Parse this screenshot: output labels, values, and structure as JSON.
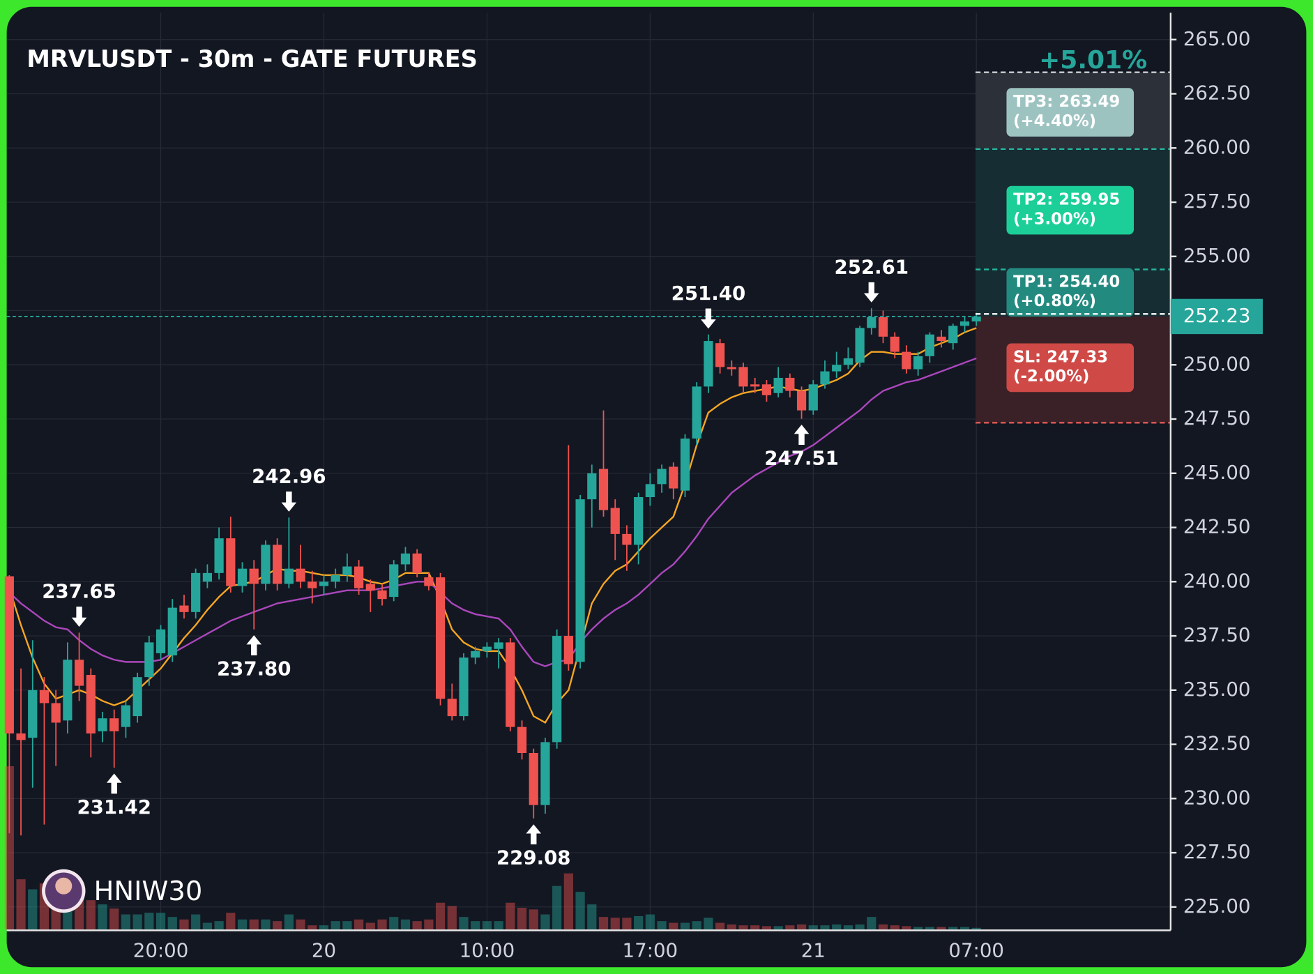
{
  "chart_data": {
    "type": "candlestick",
    "title": "MRVLUSDT - 30m - GATE FUTURES",
    "watermark": "HNIW30",
    "categories": [
      null,
      null,
      null,
      null,
      null,
      null,
      null,
      null,
      null,
      null,
      null,
      null,
      null,
      "20:00",
      null,
      null,
      null,
      null,
      null,
      null,
      null,
      null,
      null,
      null,
      null,
      null,
      null,
      "20",
      null,
      null,
      null,
      null,
      null,
      null,
      null,
      null,
      null,
      null,
      null,
      null,
      null,
      "10:00",
      null,
      null,
      null,
      null,
      null,
      null,
      null,
      null,
      null,
      null,
      null,
      null,
      null,
      "17:00",
      null,
      null,
      null,
      null,
      null,
      null,
      null,
      null,
      null,
      null,
      null,
      null,
      null,
      "21",
      null,
      null,
      null,
      null,
      null,
      null,
      null,
      null,
      null,
      null,
      null,
      null,
      null,
      "07:00"
    ],
    "open": [
      240.25,
      233.0,
      232.8,
      235.0,
      234.4,
      233.6,
      236.4,
      235.7,
      233.1,
      233.7,
      233.3,
      233.8,
      235.6,
      236.7,
      236.6,
      238.9,
      238.6,
      240.0,
      240.4,
      242.0,
      239.8,
      240.6,
      239.9,
      241.7,
      239.9,
      240.6,
      240.0,
      239.8,
      240.0,
      240.3,
      240.7,
      239.9,
      239.6,
      239.3,
      240.8,
      241.3,
      240.2,
      240.2,
      234.6,
      233.8,
      236.5,
      236.8,
      236.9,
      237.2,
      233.3,
      232.1,
      229.7,
      232.6,
      237.5,
      236.3,
      243.8,
      245.2,
      243.4,
      242.2,
      241.7,
      243.9,
      244.5,
      245.3,
      244.2,
      246.6,
      249.0,
      251.0,
      249.9,
      249.9,
      249.1,
      249.1,
      248.7,
      249.4,
      248.8,
      247.9,
      249.1,
      249.7,
      250.0,
      250.1,
      251.7,
      252.2,
      251.3,
      250.6,
      249.8,
      250.4,
      251.3,
      251.0,
      251.8,
      252.0
    ],
    "high": [
      240.3,
      236.0,
      237.3,
      235.6,
      235.0,
      237.2,
      237.65,
      236.0,
      234.0,
      234.1,
      234.5,
      235.8,
      237.5,
      238.0,
      239.2,
      239.4,
      240.6,
      240.8,
      242.5,
      243.0,
      240.9,
      241.0,
      241.9,
      242.0,
      242.96,
      241.7,
      240.5,
      240.3,
      240.6,
      241.3,
      241.0,
      240.1,
      239.9,
      241.0,
      241.6,
      241.5,
      240.4,
      240.4,
      235.3,
      236.7,
      237.0,
      237.2,
      237.4,
      237.4,
      233.6,
      232.3,
      232.8,
      237.8,
      246.3,
      244.0,
      245.4,
      247.9,
      243.8,
      242.6,
      244.1,
      245.0,
      245.4,
      245.5,
      246.8,
      249.2,
      251.4,
      251.2,
      250.2,
      250.1,
      249.4,
      249.3,
      249.9,
      249.6,
      249.0,
      249.3,
      250.2,
      250.6,
      250.8,
      251.8,
      252.61,
      252.5,
      251.5,
      250.9,
      250.6,
      251.5,
      251.6,
      251.9,
      252.2,
      252.4
    ],
    "low": [
      228.4,
      228.3,
      230.5,
      228.8,
      231.5,
      233.0,
      234.5,
      231.9,
      232.6,
      231.42,
      232.8,
      233.5,
      235.2,
      236.4,
      236.3,
      238.3,
      238.3,
      239.7,
      240.1,
      239.5,
      239.5,
      237.8,
      239.6,
      239.6,
      239.7,
      239.7,
      239.0,
      239.4,
      239.7,
      240.0,
      239.4,
      238.6,
      238.9,
      239.1,
      240.5,
      240.2,
      239.6,
      234.3,
      233.6,
      233.6,
      236.2,
      236.5,
      236.0,
      233.1,
      231.8,
      229.08,
      229.3,
      232.3,
      235.9,
      236.0,
      242.5,
      243.0,
      241.0,
      240.5,
      240.8,
      243.5,
      244.1,
      243.8,
      243.9,
      246.3,
      248.7,
      249.6,
      249.5,
      248.7,
      248.7,
      248.3,
      248.5,
      248.5,
      247.51,
      247.7,
      248.9,
      249.4,
      249.8,
      249.9,
      251.4,
      251.0,
      250.3,
      249.6,
      249.5,
      250.1,
      250.8,
      250.7,
      251.5,
      251.8
    ],
    "close": [
      233.0,
      232.7,
      235.0,
      234.4,
      233.5,
      236.4,
      235.2,
      233.0,
      233.7,
      233.1,
      234.3,
      235.6,
      237.2,
      237.8,
      238.8,
      238.6,
      240.4,
      240.4,
      242.0,
      239.8,
      240.6,
      239.9,
      241.7,
      239.9,
      240.6,
      240.0,
      239.7,
      240.0,
      240.3,
      240.7,
      239.7,
      239.6,
      239.2,
      240.8,
      241.3,
      240.4,
      239.8,
      234.6,
      233.8,
      236.5,
      236.8,
      237.0,
      237.2,
      233.3,
      232.1,
      229.7,
      232.6,
      237.5,
      236.2,
      243.8,
      245.0,
      243.3,
      242.2,
      241.7,
      243.9,
      244.5,
      245.2,
      244.3,
      246.6,
      249.0,
      251.1,
      249.9,
      249.8,
      249.0,
      249.0,
      248.6,
      249.4,
      248.8,
      247.9,
      249.1,
      249.7,
      250.0,
      250.3,
      251.7,
      252.2,
      251.3,
      250.6,
      249.8,
      250.4,
      251.4,
      251.1,
      251.8,
      252.0,
      252.23
    ],
    "high_labels": [
      null,
      null,
      null,
      null,
      null,
      null,
      "237.65",
      null,
      null,
      null,
      null,
      null,
      null,
      null,
      null,
      null,
      null,
      null,
      null,
      null,
      null,
      null,
      null,
      null,
      "242.96",
      null,
      null,
      null,
      null,
      null,
      null,
      null,
      null,
      null,
      null,
      null,
      null,
      null,
      null,
      null,
      null,
      null,
      null,
      null,
      null,
      null,
      null,
      null,
      null,
      null,
      null,
      null,
      null,
      null,
      null,
      null,
      null,
      null,
      null,
      null,
      "251.40",
      null,
      null,
      null,
      null,
      null,
      null,
      null,
      null,
      null,
      null,
      null,
      null,
      null,
      "252.61",
      null,
      null,
      null,
      null,
      null,
      null,
      null,
      null,
      null
    ],
    "low_labels": [
      null,
      null,
      null,
      null,
      null,
      null,
      null,
      null,
      null,
      "231.42",
      null,
      null,
      null,
      null,
      null,
      null,
      null,
      null,
      null,
      null,
      null,
      "237.80",
      null,
      null,
      null,
      null,
      null,
      null,
      null,
      null,
      null,
      null,
      null,
      null,
      null,
      null,
      null,
      null,
      null,
      null,
      null,
      null,
      null,
      null,
      null,
      "229.08",
      null,
      null,
      null,
      null,
      null,
      null,
      null,
      null,
      null,
      null,
      null,
      null,
      null,
      null,
      null,
      null,
      null,
      null,
      null,
      null,
      null,
      null,
      "247.51",
      null,
      null,
      null,
      null,
      null,
      null,
      null,
      null,
      null,
      null,
      null,
      null,
      null,
      null,
      null
    ],
    "volume": [
      195,
      60,
      48,
      55,
      30,
      40,
      45,
      35,
      30,
      25,
      18,
      18,
      20,
      20,
      15,
      12,
      18,
      8,
      10,
      20,
      12,
      12,
      12,
      10,
      18,
      12,
      5,
      5,
      10,
      10,
      12,
      8,
      12,
      15,
      12,
      10,
      12,
      32,
      28,
      15,
      10,
      10,
      10,
      32,
      26,
      24,
      18,
      52,
      67,
      45,
      30,
      15,
      14,
      14,
      16,
      18,
      10,
      8,
      8,
      10,
      14,
      8,
      6,
      5,
      5,
      4,
      4,
      5,
      6,
      5,
      5,
      6,
      5,
      6,
      15,
      6,
      5,
      4,
      3,
      3,
      3,
      3,
      3,
      2
    ],
    "moving_averages": [
      {
        "color": "#f5a623",
        "values": [
          239.7,
          238.0,
          236.5,
          235.3,
          234.6,
          234.8,
          235.0,
          234.8,
          234.5,
          234.3,
          234.5,
          235.0,
          235.5,
          236.0,
          236.7,
          237.4,
          238.0,
          238.7,
          239.3,
          239.8,
          239.9,
          240.0,
          240.3,
          240.6,
          240.5,
          240.5,
          240.4,
          240.3,
          240.3,
          240.3,
          240.2,
          240.0,
          239.9,
          240.1,
          240.4,
          240.4,
          240.4,
          239.2,
          237.8,
          237.2,
          236.9,
          236.8,
          236.8,
          236.0,
          235.0,
          233.8,
          233.5,
          234.4,
          235.0,
          237.0,
          239.0,
          239.9,
          240.5,
          240.8,
          241.4,
          242.0,
          242.5,
          243.0,
          244.5,
          246.3,
          247.8,
          248.2,
          248.5,
          248.7,
          248.8,
          248.9,
          249.0,
          248.9,
          248.8,
          248.9,
          249.1,
          249.3,
          249.6,
          250.2,
          250.6,
          250.6,
          250.5,
          250.5,
          250.5,
          250.8,
          251.0,
          251.2,
          251.5,
          251.7
        ]
      },
      {
        "color": "#ab47bc",
        "values": [
          239.5,
          239.0,
          238.6,
          238.2,
          237.9,
          237.8,
          237.3,
          236.9,
          236.6,
          236.4,
          236.3,
          236.3,
          236.3,
          236.4,
          236.7,
          237.0,
          237.3,
          237.6,
          237.9,
          238.2,
          238.4,
          238.6,
          238.8,
          239.0,
          239.1,
          239.2,
          239.3,
          239.4,
          239.5,
          239.6,
          239.6,
          239.6,
          239.7,
          239.8,
          239.9,
          240.0,
          240.0,
          239.5,
          239.0,
          238.7,
          238.5,
          238.4,
          238.3,
          237.8,
          237.0,
          236.3,
          236.1,
          236.3,
          236.4,
          237.2,
          237.8,
          238.3,
          238.7,
          239.0,
          239.4,
          239.9,
          240.4,
          240.8,
          241.4,
          242.1,
          242.9,
          243.5,
          244.1,
          244.5,
          244.9,
          245.2,
          245.5,
          245.8,
          246.0,
          246.3,
          246.7,
          247.1,
          247.5,
          247.9,
          248.4,
          248.8,
          249.0,
          249.2,
          249.3,
          249.5,
          249.7,
          249.9,
          250.1,
          250.3
        ]
      }
    ],
    "up_color": "#26a69a",
    "down_color": "#ef5350",
    "current_price": {
      "value": 252.23,
      "label": "252.23"
    },
    "target_change": "+5.01%",
    "levels": [
      {
        "label": "TP3: 263.49",
        "change": "(+4.40%)",
        "value": 263.49,
        "color": "#9dc3c1",
        "line_color": "#c9d1d3"
      },
      {
        "label": "TP2: 259.95",
        "change": "(+3.00%)",
        "value": 259.95,
        "color": "#1ccf98",
        "line_color": "#26b59c"
      },
      {
        "label": "TP1: 254.40",
        "change": "(+0.80%)",
        "value": 254.4,
        "color": "#238a80",
        "line_color": "#26b59c"
      },
      {
        "label": "SL: 247.33",
        "change": "(-2.00%)",
        "value": 247.33,
        "color": "#cf4946",
        "line_color": "#e25a58"
      }
    ],
    "ylim": [
      223.96,
      266.24
    ],
    "yticks": [
      {
        "value": 225,
        "label": "225.00"
      },
      {
        "value": 227.5,
        "label": "227.50"
      },
      {
        "value": 230,
        "label": "230.00"
      },
      {
        "value": 232.5,
        "label": "232.50"
      },
      {
        "value": 235,
        "label": "235.00"
      },
      {
        "value": 237.5,
        "label": "237.50"
      },
      {
        "value": 240,
        "label": "240.00"
      },
      {
        "value": 242.5,
        "label": "242.50"
      },
      {
        "value": 245,
        "label": "245.00"
      },
      {
        "value": 247.5,
        "label": "247.50"
      },
      {
        "value": 250,
        "label": "250.00"
      },
      {
        "value": 252.5,
        "label": "252.50"
      },
      {
        "value": 255,
        "label": "255.00"
      },
      {
        "value": 257.5,
        "label": "257.50"
      },
      {
        "value": 260,
        "label": "260.00"
      },
      {
        "value": 262.5,
        "label": "262.50"
      },
      {
        "value": 265,
        "label": "265.00"
      }
    ],
    "grid": true
  }
}
